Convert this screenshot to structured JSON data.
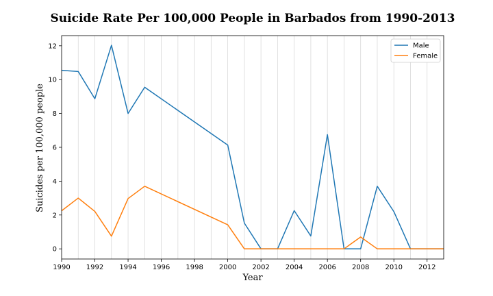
{
  "chart_data": {
    "type": "line",
    "title": "Suicide Rate Per 100,000 People in Barbados from 1990-2013",
    "xlabel": "Year",
    "ylabel": "Suicides per 100,000 people",
    "xlim": [
      1990,
      2013
    ],
    "ylim": [
      -0.6,
      12.6
    ],
    "xticks": [
      1990,
      1992,
      1994,
      1996,
      1998,
      2000,
      2002,
      2004,
      2006,
      2008,
      2010,
      2012
    ],
    "yticks": [
      0,
      2,
      4,
      6,
      8,
      10,
      12
    ],
    "grid": "vertical lines at every year",
    "legend_position": "top-right",
    "x": [
      1990,
      1991,
      1992,
      1993,
      1994,
      1995,
      2000,
      2001,
      2002,
      2003,
      2004,
      2005,
      2006,
      2007,
      2008,
      2009,
      2010,
      2011,
      2012,
      2013
    ],
    "series": [
      {
        "name": "Male",
        "color": "#1f77b4",
        "values": [
          10.55,
          10.48,
          8.87,
          12.03,
          8.0,
          9.55,
          6.13,
          1.52,
          0.0,
          0.0,
          2.26,
          0.76,
          6.75,
          0.0,
          0.0,
          3.7,
          2.2,
          0.0,
          0.0,
          0.0
        ]
      },
      {
        "name": "Female",
        "color": "#ff7f0e",
        "values": [
          2.25,
          3.0,
          2.21,
          0.75,
          2.97,
          3.7,
          1.42,
          0.0,
          0.0,
          0.0,
          0.0,
          0.0,
          0.0,
          0.0,
          0.7,
          0.0,
          0.0,
          0.0,
          0.0,
          0.0
        ]
      }
    ]
  }
}
